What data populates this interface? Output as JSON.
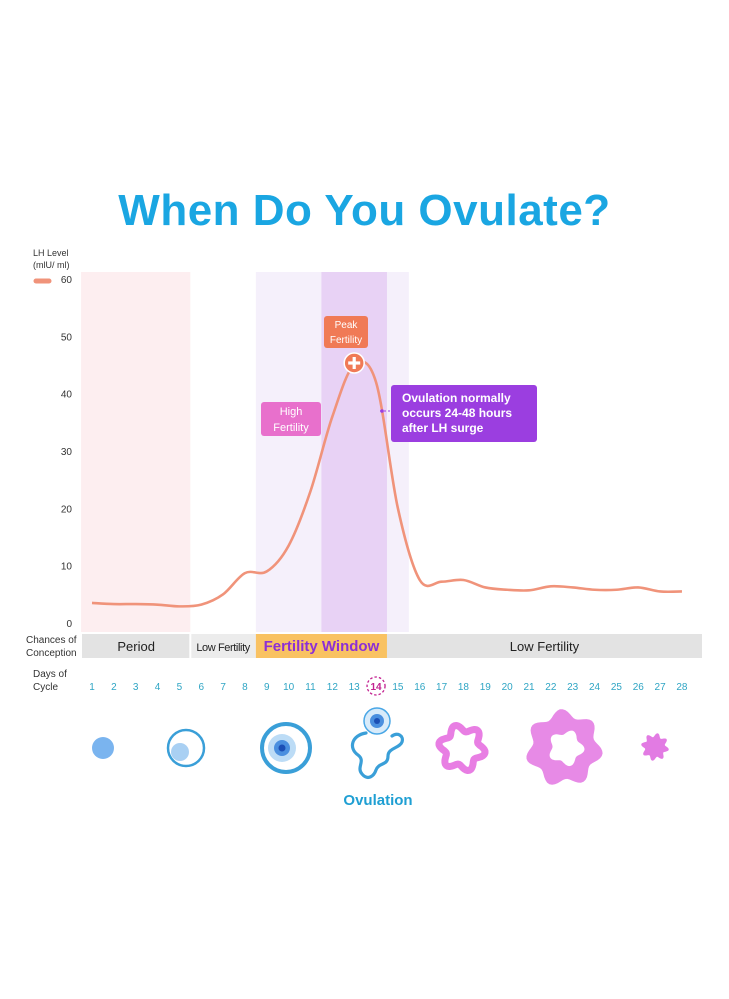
{
  "title": "When Do You Ovulate?",
  "chart_data": {
    "type": "line",
    "title": "When Do You Ovulate?",
    "ylabel": [
      "LH Level",
      "(mlU/ ml)"
    ],
    "ylim": [
      0,
      60
    ],
    "yticks": [
      0,
      10,
      20,
      30,
      40,
      50,
      60
    ],
    "x": [
      1,
      2,
      3,
      4,
      5,
      6,
      7,
      8,
      9,
      10,
      11,
      12,
      13,
      14,
      15,
      16,
      17,
      18,
      19,
      20,
      21,
      22,
      23,
      24,
      25,
      26,
      27,
      28
    ],
    "series": [
      {
        "name": "",
        "color": "#f0937a",
        "values": [
          3.5,
          3.3,
          3.3,
          3.2,
          2.9,
          3.2,
          5,
          8.7,
          9,
          13.5,
          23,
          36,
          45,
          42,
          20,
          7.5,
          7.2,
          7.5,
          6.2,
          5.8,
          5.7,
          6.4,
          6.2,
          5.8,
          5.8,
          6.2,
          5.5,
          5.5
        ]
      }
    ],
    "phase_bands": [
      {
        "label": "Period",
        "start_day": 1,
        "end_day": 5,
        "color": "#fdeef0"
      },
      {
        "label": "High Fertility",
        "start_day": 9,
        "end_day": 15,
        "color": "#f5f0fb"
      },
      {
        "label": "Peak Fertility",
        "start_day": 12,
        "end_day": 14,
        "color": "#e8d2f5"
      }
    ],
    "annotations": {
      "peak": {
        "line1": "Peak",
        "line2": "Fertility",
        "day": 13,
        "color": "#f07a56"
      },
      "high": {
        "line1": "High",
        "line2": "Fertility",
        "color": "#e870cc"
      },
      "ovulation_note": {
        "lines": [
          "Ovulation normally",
          "occurs 24-48 hours",
          "after LH surge"
        ],
        "color": "#9b3ee0"
      }
    },
    "conception_row": {
      "label": [
        "Chances of",
        "Conception"
      ],
      "segments": [
        {
          "label": "Period",
          "start_day": 1,
          "end_day": 5,
          "bg": "#e3e3e3",
          "color": "#222222"
        },
        {
          "label": "Low Fertility",
          "start_day": 6,
          "end_day": 8,
          "bg": "#ececec",
          "color": "#222222"
        },
        {
          "label": "Fertility Window",
          "start_day": 9,
          "end_day": 14,
          "bg": "#f9c262",
          "color": "#8c2fd6"
        },
        {
          "label": "Low Fertility",
          "start_day": 15,
          "end_day": 28,
          "bg": "#e3e3e3",
          "color": "#222222"
        }
      ]
    },
    "days_row": {
      "label": [
        "Days of",
        "Cycle"
      ],
      "highlight_day": 14
    },
    "stages_caption": "Ovulation"
  }
}
